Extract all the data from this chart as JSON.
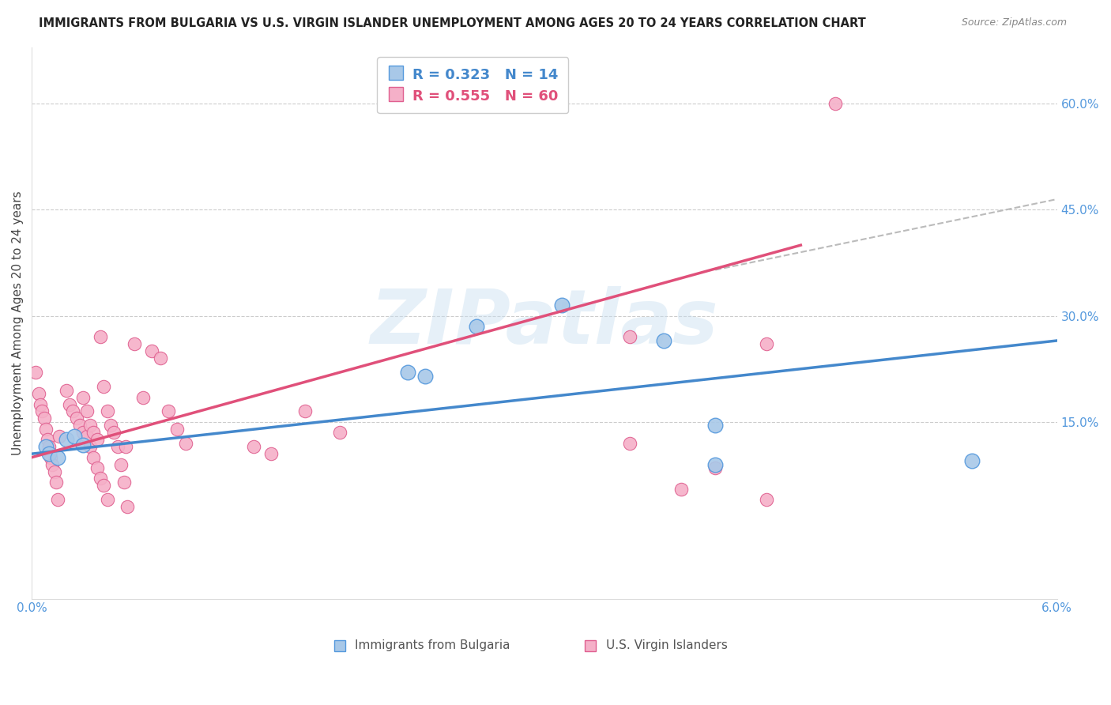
{
  "title": "IMMIGRANTS FROM BULGARIA VS U.S. VIRGIN ISLANDER UNEMPLOYMENT AMONG AGES 20 TO 24 YEARS CORRELATION CHART",
  "source": "Source: ZipAtlas.com",
  "ylabel": "Unemployment Among Ages 20 to 24 years",
  "xlim": [
    0.0,
    0.06
  ],
  "ylim": [
    -0.1,
    0.68
  ],
  "xtick_positions": [
    0.0,
    0.01,
    0.02,
    0.03,
    0.04,
    0.05,
    0.06
  ],
  "xtick_labels": [
    "0.0%",
    "",
    "",
    "",
    "",
    "",
    "6.0%"
  ],
  "ytick_values": [
    0.15,
    0.3,
    0.45,
    0.6
  ],
  "ytick_labels": [
    "15.0%",
    "30.0%",
    "45.0%",
    "60.0%"
  ],
  "watermark": "ZIPatlas",
  "blue_color": "#a8c8e8",
  "pink_color": "#f5b0c8",
  "blue_edge_color": "#5599dd",
  "pink_edge_color": "#e06090",
  "blue_line_color": "#4488cc",
  "pink_line_color": "#e0507a",
  "dashed_line_color": "#bbbbbb",
  "grid_color": "#cccccc",
  "background_color": "#ffffff",
  "title_color": "#222222",
  "source_color": "#888888",
  "ylabel_color": "#444444",
  "tick_color": "#5599dd",
  "legend_blue_label": "R = 0.323   N = 14",
  "legend_pink_label": "R = 0.555   N = 60",
  "bottom_legend_blue": "Immigrants from Bulgaria",
  "bottom_legend_pink": "U.S. Virgin Islanders",
  "blue_scatter": [
    [
      0.0008,
      0.115
    ],
    [
      0.001,
      0.105
    ],
    [
      0.0015,
      0.1
    ],
    [
      0.002,
      0.125
    ],
    [
      0.0025,
      0.13
    ],
    [
      0.003,
      0.118
    ],
    [
      0.022,
      0.22
    ],
    [
      0.023,
      0.215
    ],
    [
      0.026,
      0.285
    ],
    [
      0.031,
      0.315
    ],
    [
      0.037,
      0.265
    ],
    [
      0.04,
      0.145
    ],
    [
      0.04,
      0.09
    ],
    [
      0.055,
      0.095
    ]
  ],
  "pink_scatter": [
    [
      0.0002,
      0.22
    ],
    [
      0.0004,
      0.19
    ],
    [
      0.0005,
      0.175
    ],
    [
      0.0006,
      0.165
    ],
    [
      0.0007,
      0.155
    ],
    [
      0.0008,
      0.14
    ],
    [
      0.0009,
      0.125
    ],
    [
      0.001,
      0.115
    ],
    [
      0.0011,
      0.1
    ],
    [
      0.0012,
      0.09
    ],
    [
      0.0013,
      0.08
    ],
    [
      0.0014,
      0.065
    ],
    [
      0.0015,
      0.04
    ],
    [
      0.0016,
      0.13
    ],
    [
      0.002,
      0.195
    ],
    [
      0.0022,
      0.175
    ],
    [
      0.0024,
      0.165
    ],
    [
      0.0026,
      0.155
    ],
    [
      0.0028,
      0.145
    ],
    [
      0.003,
      0.135
    ],
    [
      0.0032,
      0.13
    ],
    [
      0.0034,
      0.115
    ],
    [
      0.0036,
      0.1
    ],
    [
      0.0038,
      0.085
    ],
    [
      0.004,
      0.07
    ],
    [
      0.0042,
      0.06
    ],
    [
      0.0044,
      0.04
    ],
    [
      0.003,
      0.185
    ],
    [
      0.0032,
      0.165
    ],
    [
      0.0034,
      0.145
    ],
    [
      0.0036,
      0.135
    ],
    [
      0.0038,
      0.125
    ],
    [
      0.004,
      0.27
    ],
    [
      0.0042,
      0.2
    ],
    [
      0.0044,
      0.165
    ],
    [
      0.0046,
      0.145
    ],
    [
      0.0048,
      0.135
    ],
    [
      0.005,
      0.115
    ],
    [
      0.0052,
      0.09
    ],
    [
      0.0054,
      0.065
    ],
    [
      0.0056,
      0.03
    ],
    [
      0.006,
      0.26
    ],
    [
      0.0065,
      0.185
    ],
    [
      0.007,
      0.25
    ],
    [
      0.0075,
      0.24
    ],
    [
      0.008,
      0.165
    ],
    [
      0.0085,
      0.14
    ],
    [
      0.009,
      0.12
    ],
    [
      0.0055,
      0.115
    ],
    [
      0.013,
      0.115
    ],
    [
      0.014,
      0.105
    ],
    [
      0.016,
      0.165
    ],
    [
      0.018,
      0.135
    ],
    [
      0.035,
      0.27
    ],
    [
      0.035,
      0.12
    ],
    [
      0.038,
      0.055
    ],
    [
      0.04,
      0.085
    ],
    [
      0.043,
      0.26
    ],
    [
      0.043,
      0.04
    ],
    [
      0.047,
      0.6
    ]
  ],
  "blue_line_x": [
    0.0,
    0.06
  ],
  "blue_line_y": [
    0.105,
    0.265
  ],
  "pink_line_x": [
    0.0,
    0.045
  ],
  "pink_line_y": [
    0.1,
    0.4
  ],
  "dashed_line_x": [
    0.04,
    0.06
  ],
  "dashed_line_y": [
    0.365,
    0.465
  ],
  "title_fontsize": 10.5,
  "source_fontsize": 9,
  "ylabel_fontsize": 11,
  "tick_fontsize": 11,
  "legend_fontsize": 13,
  "watermark_fontsize": 70,
  "scatter_size_blue": 180,
  "scatter_size_pink": 140
}
